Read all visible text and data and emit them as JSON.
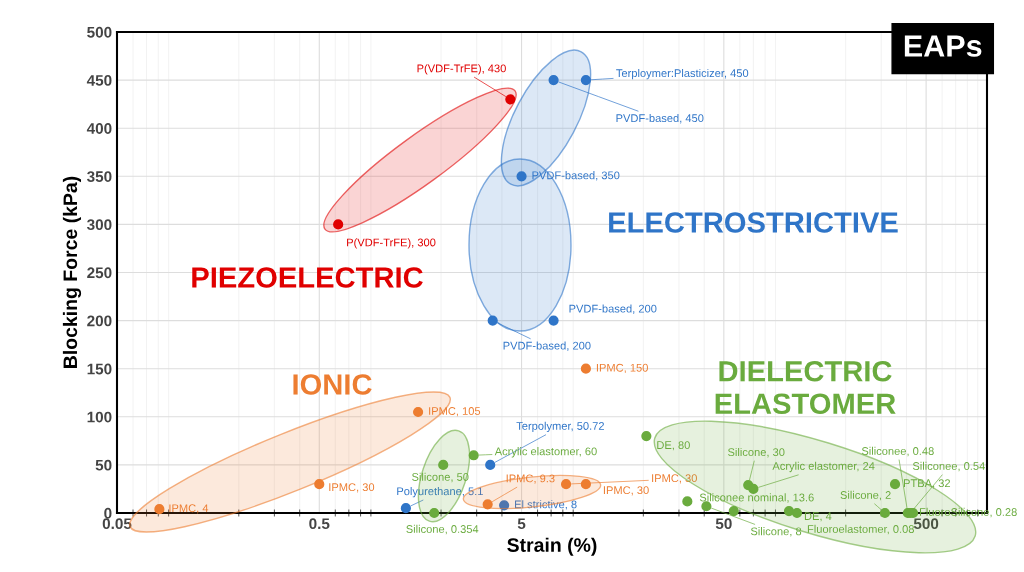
{
  "chart_data": {
    "type": "scatter",
    "title": "EAPs",
    "xlabel": "Strain (%)",
    "ylabel": "Blocking Force (kPa)",
    "log": "x",
    "xlim": [
      0.05,
      1000
    ],
    "xticks": [
      0.05,
      0.5,
      5,
      50,
      500
    ],
    "ylim": [
      0,
      500
    ],
    "yticks": [
      0,
      50,
      100,
      150,
      200,
      250,
      300,
      350,
      400,
      450,
      500
    ],
    "grid": true,
    "legend": false,
    "marker": "circle",
    "series": [
      {
        "name": "PIEZOELECTRIC",
        "color": "#e00000",
        "x": [
          0.62,
          4.4
        ],
        "values": [
          300,
          430
        ]
      },
      {
        "name": "ELECTROSTRICTIVE",
        "color": "#2f75c8",
        "x": [
          10.4,
          7.2,
          5.0,
          3.6,
          7.2,
          3.5,
          1.34,
          4.1
        ],
        "values": [
          450,
          450,
          350,
          200,
          200,
          50,
          5,
          8
        ]
      },
      {
        "name": "IONIC",
        "color": "#ed7d31",
        "x": [
          0.081,
          0.5,
          1.54,
          10.4,
          3.4,
          8.3,
          10.4
        ],
        "values": [
          4,
          30,
          105,
          150,
          9,
          30,
          30
        ]
      },
      {
        "name": "DIELECTRIC\nELASTOMER",
        "color": "#6aab3e",
        "x": [
          2.05,
          2.9,
          1.85,
          20.7,
          33,
          41,
          56,
          66,
          70,
          105,
          115,
          313,
          351,
          406,
          418,
          431
        ],
        "values": [
          50,
          60,
          0,
          80,
          12,
          7,
          2,
          29,
          25,
          2,
          0,
          0,
          30,
          0,
          0,
          0
        ]
      }
    ],
    "annotations": [
      {
        "text": "P(VDF-TrFE), 300",
        "x": 0.62,
        "y": 300
      },
      {
        "text": "P(VDF-TrFE), 430",
        "x": 4.4,
        "y": 430
      },
      {
        "text": "Terploymer:Plasticizer, 450",
        "x": 10.4,
        "y": 450
      },
      {
        "text": "PVDF-based, 450",
        "x": 7.2,
        "y": 450
      },
      {
        "text": "PVDF-based, 350",
        "x": 5.0,
        "y": 350
      },
      {
        "text": "PVDF-based, 200",
        "x": 3.6,
        "y": 200
      },
      {
        "text": "PVDF-based, 200",
        "x": 7.2,
        "y": 200
      },
      {
        "text": "Terpolymer, 50.72",
        "x": 3.5,
        "y": 50
      },
      {
        "text": "Polyurethane, 5.1",
        "x": 1.34,
        "y": 5
      },
      {
        "text": "El strictive, 8",
        "x": 4.1,
        "y": 8
      },
      {
        "text": "IPMC, 4",
        "x": 0.081,
        "y": 4
      },
      {
        "text": "IPMC, 30",
        "x": 0.5,
        "y": 30
      },
      {
        "text": "IPMC, 105",
        "x": 1.54,
        "y": 105
      },
      {
        "text": "IPMC, 150",
        "x": 10.4,
        "y": 150
      },
      {
        "text": "IPMC, 9.3",
        "x": 3.4,
        "y": 9
      },
      {
        "text": "IPMC, 30",
        "x": 8.3,
        "y": 30
      },
      {
        "text": "IPMC, 30",
        "x": 10.4,
        "y": 30
      },
      {
        "text": "Silicone, 50",
        "x": 2.05,
        "y": 50
      },
      {
        "text": "Acrylic elastomer, 60",
        "x": 2.9,
        "y": 60
      },
      {
        "text": "Silicone, 0.354",
        "x": 1.85,
        "y": 0
      },
      {
        "text": "DE, 80",
        "x": 20.7,
        "y": 80
      },
      {
        "text": "Siliconee nominal, 13.6",
        "x": 33,
        "y": 12
      },
      {
        "text": "Silicone, 8",
        "x": 41,
        "y": 7
      },
      {
        "text": "Silicone, 30",
        "x": 66,
        "y": 29
      },
      {
        "text": "Acrylic elastomer, 24",
        "x": 70,
        "y": 25
      },
      {
        "text": "DE, 4",
        "x": 105,
        "y": 2
      },
      {
        "text": "Fluoroelastomer, 0.08",
        "x": 115,
        "y": 0
      },
      {
        "text": "Silicone, 2",
        "x": 313,
        "y": 0
      },
      {
        "text": "PTBA, 32",
        "x": 351,
        "y": 30
      },
      {
        "text": "Siliconee, 0.48",
        "x": 406,
        "y": 0
      },
      {
        "text": "Siliconee, 0.54",
        "x": 418,
        "y": 0
      },
      {
        "text": "FluoroSilicone, 0.28",
        "x": 431,
        "y": 0
      }
    ]
  }
}
